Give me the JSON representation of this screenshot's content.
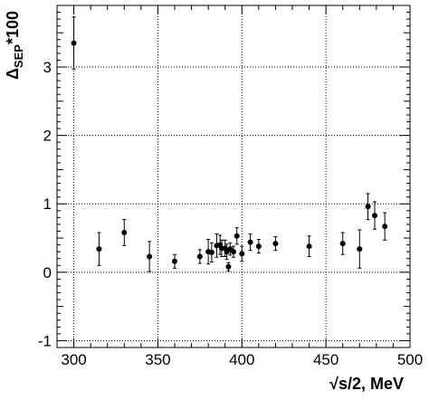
{
  "chart_data": {
    "type": "scatter",
    "xlabel_prefix": "√",
    "xlabel": "s/2, MeV",
    "ylabel_main": "Δ",
    "ylabel_sub": "SEP",
    "ylabel_suffix": "*100",
    "xlim": [
      290,
      500
    ],
    "ylim": [
      -1.1,
      3.9
    ],
    "x_ticks": [
      300,
      350,
      400,
      450,
      500
    ],
    "y_ticks": [
      -1,
      0,
      1,
      2,
      3
    ],
    "grid": true,
    "series": [
      {
        "points": [
          {
            "x": 300,
            "y": 3.35,
            "err": 0.38
          },
          {
            "x": 315,
            "y": 0.34,
            "err": 0.24
          },
          {
            "x": 330,
            "y": 0.58,
            "err": 0.19
          },
          {
            "x": 345,
            "y": 0.23,
            "err": 0.22
          },
          {
            "x": 360,
            "y": 0.16,
            "err": 0.1
          },
          {
            "x": 375,
            "y": 0.23,
            "err": 0.1
          },
          {
            "x": 380,
            "y": 0.3,
            "err": 0.18
          },
          {
            "x": 382,
            "y": 0.29,
            "err": 0.14
          },
          {
            "x": 385,
            "y": 0.39,
            "err": 0.17
          },
          {
            "x": 387,
            "y": 0.4,
            "err": 0.14
          },
          {
            "x": 388,
            "y": 0.35,
            "err": 0.12
          },
          {
            "x": 390,
            "y": 0.35,
            "err": 0.12
          },
          {
            "x": 391,
            "y": 0.3,
            "err": 0.11
          },
          {
            "x": 392,
            "y": 0.08,
            "err": 0.06
          },
          {
            "x": 393,
            "y": 0.34,
            "err": 0.09
          },
          {
            "x": 395,
            "y": 0.3,
            "err": 0.08
          },
          {
            "x": 397,
            "y": 0.53,
            "err": 0.12
          },
          {
            "x": 400,
            "y": 0.27,
            "err": 0.11
          },
          {
            "x": 405,
            "y": 0.44,
            "err": 0.12
          },
          {
            "x": 410,
            "y": 0.38,
            "err": 0.1
          },
          {
            "x": 420,
            "y": 0.42,
            "err": 0.1
          },
          {
            "x": 440,
            "y": 0.38,
            "err": 0.15
          },
          {
            "x": 460,
            "y": 0.42,
            "err": 0.16
          },
          {
            "x": 470,
            "y": 0.34,
            "err": 0.28
          },
          {
            "x": 475,
            "y": 0.96,
            "err": 0.19
          },
          {
            "x": 479,
            "y": 0.83,
            "err": 0.2
          },
          {
            "x": 485,
            "y": 0.67,
            "err": 0.2
          }
        ]
      }
    ]
  }
}
